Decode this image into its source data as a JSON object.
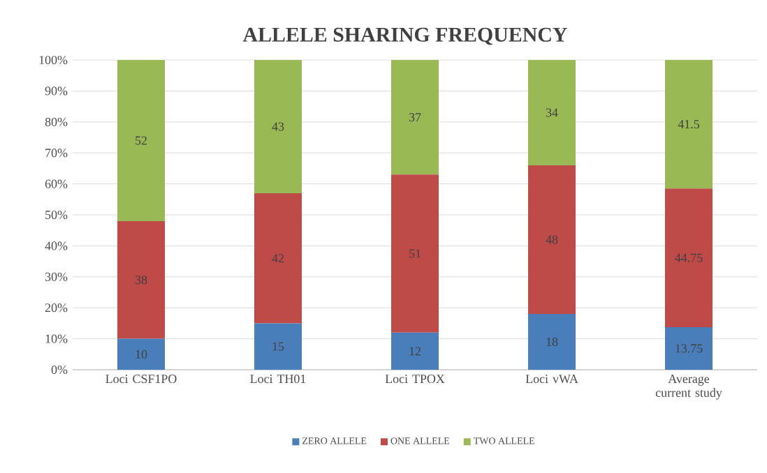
{
  "chart_data": {
    "type": "bar",
    "stacked": true,
    "title": "ALLELE SHARING FREQUENCY",
    "categories": [
      "Loci CSF1PO",
      "Loci TH01",
      "Loci TPOX",
      "Loci vWA",
      "Average current study"
    ],
    "series": [
      {
        "name": "ZERO ALLELE",
        "color": "#4a7ebb",
        "values": [
          10,
          15,
          12,
          18,
          13.75
        ]
      },
      {
        "name": "ONE ALLELE",
        "color": "#be4b48",
        "values": [
          38,
          42,
          51,
          48,
          44.75
        ]
      },
      {
        "name": "TWO ALLELE",
        "color": "#98b954",
        "values": [
          52,
          43,
          37,
          34,
          41.5
        ]
      }
    ],
    "ylim": [
      0,
      100
    ],
    "yticks": [
      {
        "value": 0,
        "label": "0%"
      },
      {
        "value": 10,
        "label": "10%"
      },
      {
        "value": 20,
        "label": "20%"
      },
      {
        "value": 30,
        "label": "30%"
      },
      {
        "value": 40,
        "label": "40%"
      },
      {
        "value": 50,
        "label": "50%"
      },
      {
        "value": 60,
        "label": "60%"
      },
      {
        "value": 70,
        "label": "70%"
      },
      {
        "value": 80,
        "label": "80%"
      },
      {
        "value": 90,
        "label": "90%"
      },
      {
        "value": 100,
        "label": "100%"
      }
    ],
    "grid": "y",
    "legend": "bottom",
    "data_labels": true
  }
}
